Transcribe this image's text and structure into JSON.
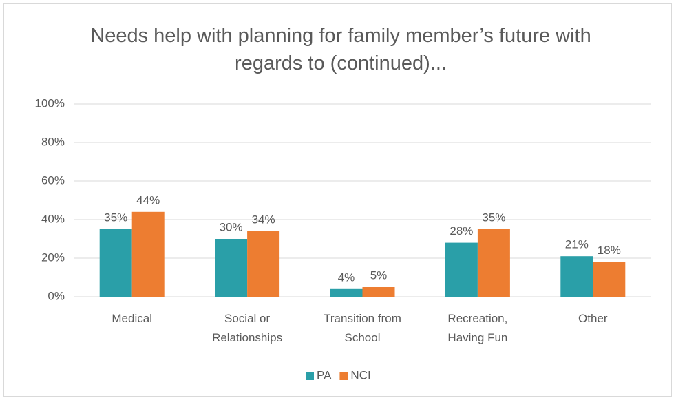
{
  "chart_data": {
    "type": "bar",
    "title": "Needs help with planning for family member’s future with regards to (continued)...",
    "categories": [
      "Medical",
      "Social or Relationships",
      "Transition from School",
      "Recreation, Having Fun",
      "Other"
    ],
    "series": [
      {
        "name": "PA",
        "color": "#2a9fa8",
        "values": [
          35,
          30,
          4,
          28,
          21
        ],
        "value_labels": [
          "35%",
          "30%",
          "4%",
          "28%",
          "21%"
        ]
      },
      {
        "name": "NCI",
        "color": "#ed7d31",
        "values": [
          44,
          34,
          5,
          35,
          18
        ],
        "value_labels": [
          "44%",
          "34%",
          "5%",
          "35%",
          "18%"
        ]
      }
    ],
    "ylim": [
      0,
      100
    ],
    "yticks": [
      {
        "value": 0,
        "label": "0%"
      },
      {
        "value": 20,
        "label": "20%"
      },
      {
        "value": 40,
        "label": "40%"
      },
      {
        "value": 60,
        "label": "60%"
      },
      {
        "value": 80,
        "label": "80%"
      },
      {
        "value": 100,
        "label": "100%"
      }
    ],
    "grid": true,
    "legend": "bottom"
  }
}
